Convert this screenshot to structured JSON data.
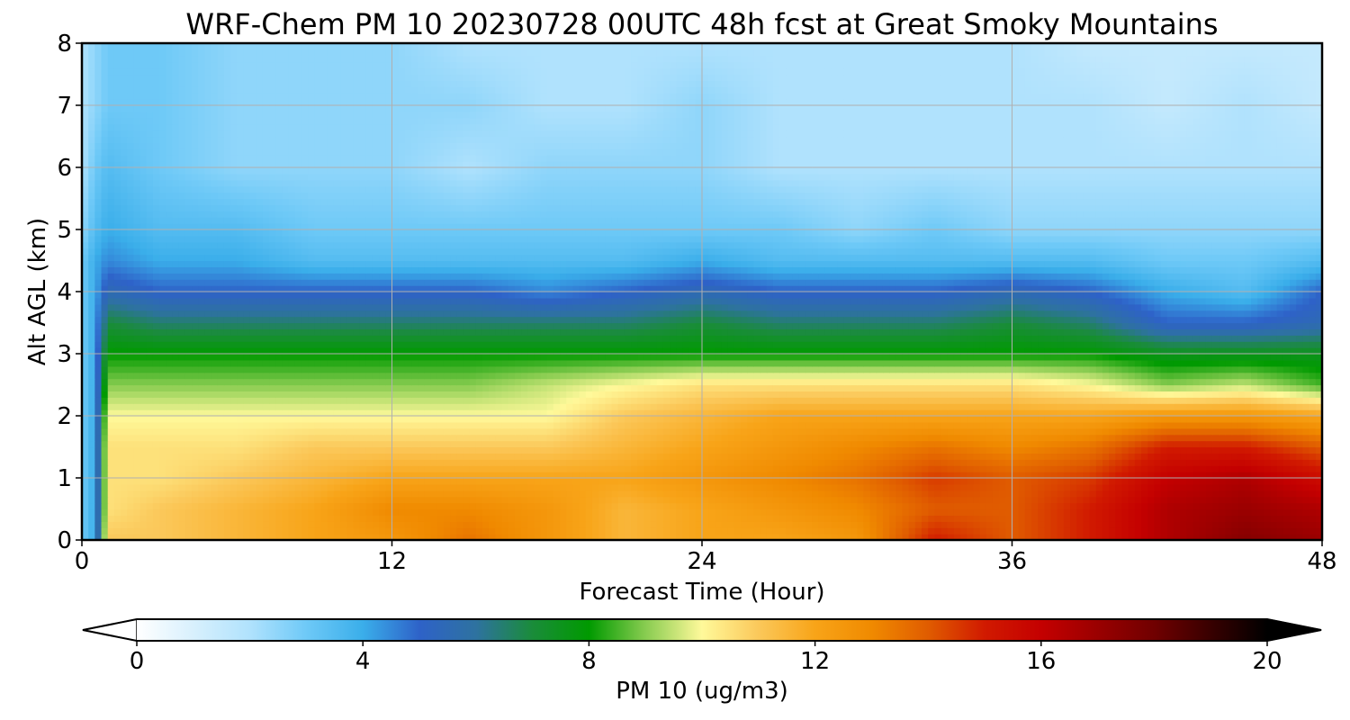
{
  "chart_data": {
    "type": "heatmap",
    "title": "WRF-Chem PM 10  20230728 00UTC 48h fcst at Great Smoky Mountains",
    "xlabel": "Forecast Time (Hour)",
    "ylabel": "Alt AGL (km)",
    "xlim": [
      0,
      48
    ],
    "ylim": [
      0,
      8
    ],
    "x_ticks": [
      "0",
      "12",
      "24",
      "36",
      "48"
    ],
    "y_ticks": [
      "0",
      "1",
      "2",
      "3",
      "4",
      "5",
      "6",
      "7",
      "8"
    ],
    "grid": true,
    "colorbar": {
      "label": "PM 10  (ug/m3)",
      "range": [
        0,
        20
      ],
      "ticks": [
        "0",
        "4",
        "8",
        "12",
        "16",
        "20"
      ],
      "extend": "both",
      "colors": [
        {
          "value": 0,
          "color": "#ffffff"
        },
        {
          "value": 1,
          "color": "#d8f0fd"
        },
        {
          "value": 2,
          "color": "#b0e2fd"
        },
        {
          "value": 3,
          "color": "#6ec9f7"
        },
        {
          "value": 4,
          "color": "#3aaeea"
        },
        {
          "value": 5,
          "color": "#2e62c8"
        },
        {
          "value": 6,
          "color": "#2e72a0"
        },
        {
          "value": 7,
          "color": "#1a8c3a"
        },
        {
          "value": 8,
          "color": "#009a00"
        },
        {
          "value": 9,
          "color": "#88cc50"
        },
        {
          "value": 10,
          "color": "#fff99a"
        },
        {
          "value": 11,
          "color": "#fbc85a"
        },
        {
          "value": 12,
          "color": "#f8a418"
        },
        {
          "value": 13,
          "color": "#f08a00"
        },
        {
          "value": 14,
          "color": "#e05c00"
        },
        {
          "value": 15,
          "color": "#d11a00"
        },
        {
          "value": 16,
          "color": "#c40000"
        },
        {
          "value": 17,
          "color": "#9a0000"
        },
        {
          "value": 18,
          "color": "#700000"
        },
        {
          "value": 19,
          "color": "#380000"
        },
        {
          "value": 20,
          "color": "#000000"
        }
      ]
    },
    "x": [
      0,
      0.5,
      1,
      3,
      6,
      9,
      12,
      15,
      18,
      21,
      24,
      27,
      30,
      33,
      36,
      39,
      42,
      45,
      48
    ],
    "y": [
      0,
      0.5,
      1,
      1.5,
      2,
      2.5,
      3,
      3.5,
      4,
      4.5,
      5,
      6,
      7,
      8
    ],
    "values": [
      [
        3,
        4,
        11,
        11,
        11.5,
        12,
        12.5,
        13.5,
        12.5,
        11.5,
        12,
        12,
        12.5,
        15,
        14,
        15,
        16.5,
        17.5,
        17
      ],
      [
        3,
        4,
        10.5,
        11,
        11.5,
        12,
        13,
        13,
        12.5,
        11.5,
        12,
        12.5,
        13,
        14,
        14,
        15,
        16.5,
        17,
        16.5
      ],
      [
        3,
        4,
        10.5,
        10.5,
        11,
        11.5,
        12,
        12,
        12,
        12,
        12.5,
        13,
        13.5,
        14.5,
        14,
        14.5,
        16,
        16.5,
        15.5
      ],
      [
        3,
        4,
        10.5,
        10.5,
        10.5,
        11,
        11,
        11,
        11,
        11.5,
        12,
        12.5,
        13,
        13.5,
        13,
        13.5,
        15,
        15,
        14
      ],
      [
        3,
        4,
        10,
        10,
        10,
        10,
        10,
        10,
        10,
        11,
        11.5,
        12,
        12,
        12,
        12,
        12,
        12.5,
        12.5,
        12
      ],
      [
        3,
        4,
        9,
        9,
        9,
        9,
        9,
        9,
        9.5,
        10,
        10.5,
        10.5,
        10.5,
        10.5,
        10.5,
        10,
        9,
        9.5,
        8.5
      ],
      [
        3,
        4,
        8,
        8,
        8,
        8,
        8,
        8,
        8,
        8,
        8,
        8,
        8,
        8,
        8,
        8,
        7.5,
        7.5,
        7.5
      ],
      [
        3,
        4,
        7,
        6.5,
        6.5,
        6.5,
        6.5,
        6.5,
        6.5,
        6.5,
        7,
        6.5,
        6.5,
        6.5,
        7,
        6.5,
        5,
        5,
        5.5
      ],
      [
        3,
        4,
        5.5,
        5,
        5,
        5,
        5,
        5,
        4.5,
        5,
        5.5,
        5,
        5,
        5,
        5.5,
        5,
        4,
        3.5,
        5
      ],
      [
        3,
        4,
        4.5,
        4,
        4,
        3.5,
        3.5,
        3.5,
        3.5,
        3.5,
        4,
        3.5,
        3.5,
        3.5,
        3.5,
        3.5,
        3,
        3,
        3.5
      ],
      [
        2.5,
        3.5,
        4,
        3.5,
        3.5,
        3,
        3,
        3,
        3,
        3,
        3,
        3,
        2.5,
        3,
        2.5,
        2.5,
        2.5,
        2.5,
        2.5
      ],
      [
        2,
        3,
        3.5,
        3,
        2.5,
        2.5,
        2.5,
        2,
        2.5,
        2.5,
        2.5,
        2,
        2,
        2,
        2,
        2,
        2,
        2,
        2
      ],
      [
        2,
        2.5,
        3,
        3,
        2.5,
        2.5,
        2.5,
        2.5,
        2,
        2,
        2.5,
        2,
        2,
        2,
        2,
        2,
        1.5,
        2,
        1.5
      ],
      [
        2,
        2.5,
        3,
        3,
        2.5,
        2.5,
        2.5,
        2,
        2,
        2,
        2,
        2,
        2,
        2,
        2,
        1.5,
        1.5,
        1.5,
        1.5
      ]
    ]
  }
}
